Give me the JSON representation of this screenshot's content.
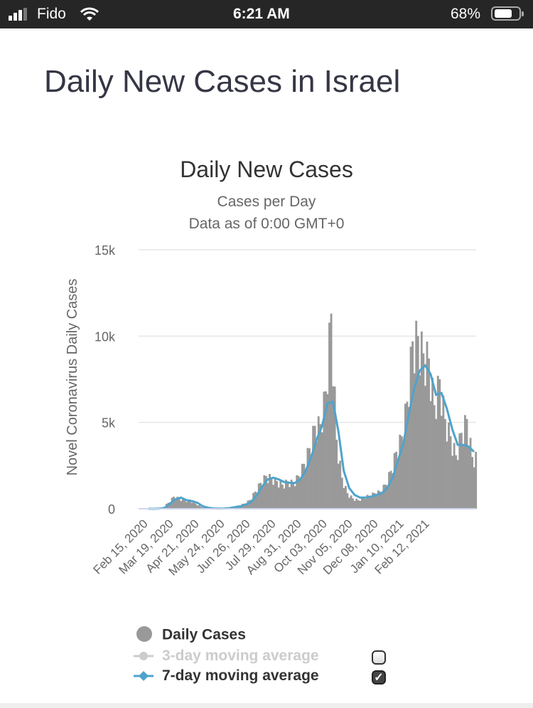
{
  "status_bar": {
    "carrier": "Fido",
    "time": "6:21 AM",
    "battery": "68%",
    "battery_level": 0.68
  },
  "page_title": "Daily New Cases in Israel",
  "chart_data": {
    "type": "bar",
    "title": "Daily New Cases",
    "subtitle_1": "Cases per Day",
    "subtitle_2": "Data as of 0:00 GMT+0",
    "ylabel": "Novel Coronavirus Daily Cases",
    "xlabel": "",
    "ylim": [
      0,
      15000
    ],
    "y_ticks": [
      "0",
      "5k",
      "10k",
      "15k"
    ],
    "y_tick_values": [
      0,
      5000,
      10000,
      15000
    ],
    "x_tick_labels": [
      "Feb 15, 2020",
      "Mar 19, 2020",
      "Apr 21, 2020",
      "May 24, 2020",
      "Jun 26, 2020",
      "Jul 29, 2020",
      "Aug 31, 2020",
      "Oct 03, 2020",
      "Nov 05, 2020",
      "Dec 08, 2020",
      "Jan 10, 2021",
      "Feb 12, 2021"
    ],
    "x_start": "Feb 15, 2020",
    "sample_step_days": 7,
    "grid": true,
    "legend_position": "bottom",
    "series": [
      {
        "name": "Daily Cases",
        "color": "#999999",
        "values": [
          0,
          0,
          20,
          80,
          350,
          700,
          600,
          480,
          500,
          300,
          120,
          50,
          20,
          10,
          20,
          50,
          120,
          180,
          300,
          500,
          1000,
          1500,
          1900,
          1800,
          1600,
          1400,
          1600,
          1500,
          1900,
          2600,
          3500,
          4800,
          4900,
          6800,
          11300,
          4000,
          1800,
          900,
          600,
          500,
          700,
          750,
          900,
          1000,
          1400,
          2200,
          3300,
          4200,
          6200,
          9700,
          10000,
          9000,
          8700,
          6000,
          7500,
          5200,
          4200,
          3100,
          4400,
          5200,
          3000
        ]
      },
      {
        "name": "3-day moving average",
        "color": "#cccccc",
        "visible": false,
        "values": []
      },
      {
        "name": "7-day moving average",
        "color": "#4fa3cb",
        "visible": true,
        "values": [
          0,
          0,
          10,
          50,
          300,
          550,
          650,
          500,
          450,
          350,
          150,
          60,
          20,
          10,
          15,
          40,
          100,
          150,
          250,
          400,
          800,
          1300,
          1700,
          1800,
          1700,
          1550,
          1500,
          1500,
          1700,
          2200,
          3000,
          4000,
          4800,
          6100,
          6200,
          4500,
          2200,
          1200,
          800,
          650,
          650,
          700,
          800,
          900,
          1200,
          1800,
          2800,
          3800,
          5500,
          7000,
          8000,
          8300,
          7800,
          6600,
          6700,
          5800,
          4600,
          3700,
          3700,
          3600,
          3300
        ]
      }
    ]
  },
  "legend": {
    "daily_cases": "Daily Cases",
    "avg3": "3-day moving average",
    "avg7": "7-day moving average",
    "avg3_checked": false,
    "avg7_checked": true
  }
}
